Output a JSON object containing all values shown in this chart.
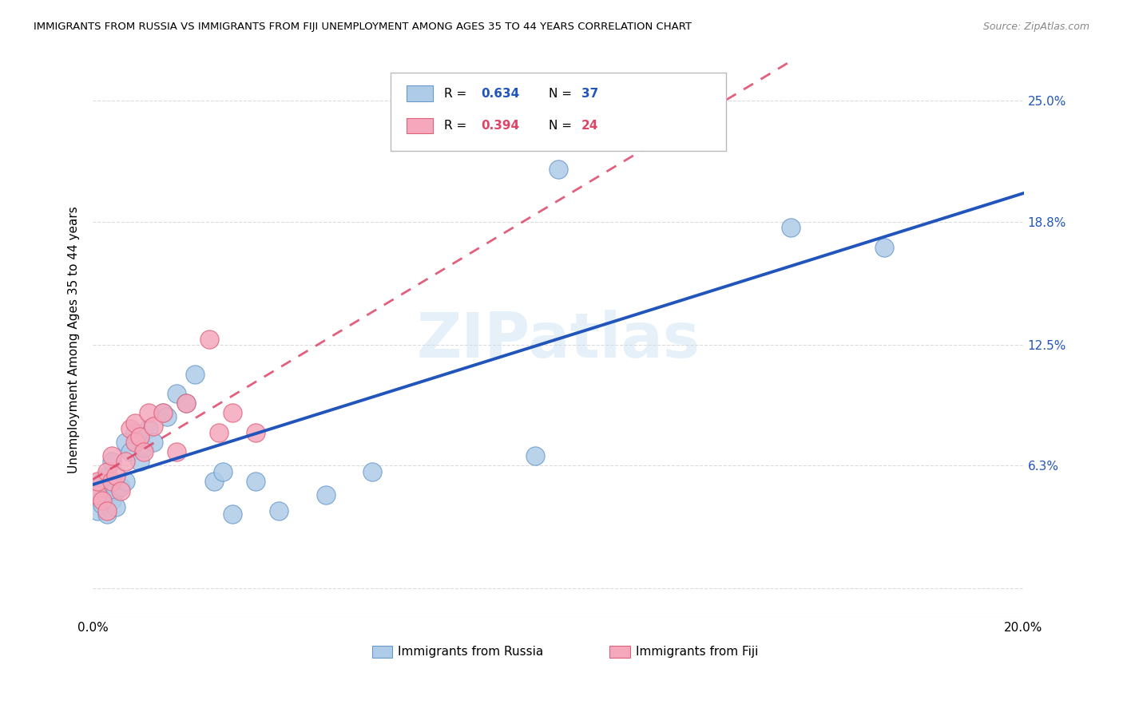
{
  "title": "IMMIGRANTS FROM RUSSIA VS IMMIGRANTS FROM FIJI UNEMPLOYMENT AMONG AGES 35 TO 44 YEARS CORRELATION CHART",
  "source": "Source: ZipAtlas.com",
  "ylabel": "Unemployment Among Ages 35 to 44 years",
  "xlim": [
    0.0,
    0.2
  ],
  "ylim": [
    -0.015,
    0.27
  ],
  "xticks": [
    0.0,
    0.025,
    0.05,
    0.075,
    0.1,
    0.125,
    0.15,
    0.175,
    0.2
  ],
  "ytick_positions": [
    0.0,
    0.063,
    0.125,
    0.188,
    0.25
  ],
  "ytick_labels_right": [
    "",
    "6.3%",
    "12.5%",
    "18.8%",
    "25.0%"
  ],
  "russia_color": "#aecce8",
  "russia_edge_color": "#6699cc",
  "fiji_color": "#f5a8bc",
  "fiji_edge_color": "#e0607a",
  "russia_line_color": "#2255bb",
  "fiji_line_color": "#dd4466",
  "watermark": "ZIPatlas",
  "grid_color": "#cccccc",
  "russia_x": [
    0.001,
    0.001,
    0.002,
    0.002,
    0.003,
    0.003,
    0.003,
    0.004,
    0.004,
    0.005,
    0.005,
    0.006,
    0.007,
    0.007,
    0.008,
    0.009,
    0.01,
    0.01,
    0.011,
    0.012,
    0.013,
    0.015,
    0.016,
    0.018,
    0.02,
    0.022,
    0.026,
    0.028,
    0.03,
    0.035,
    0.04,
    0.05,
    0.06,
    0.095,
    0.1,
    0.15,
    0.17
  ],
  "russia_y": [
    0.04,
    0.05,
    0.043,
    0.055,
    0.038,
    0.048,
    0.058,
    0.045,
    0.065,
    0.05,
    0.042,
    0.052,
    0.055,
    0.075,
    0.07,
    0.08,
    0.065,
    0.078,
    0.072,
    0.082,
    0.075,
    0.09,
    0.088,
    0.1,
    0.095,
    0.11,
    0.055,
    0.06,
    0.038,
    0.055,
    0.04,
    0.048,
    0.06,
    0.068,
    0.215,
    0.185,
    0.175
  ],
  "fiji_x": [
    0.001,
    0.001,
    0.002,
    0.003,
    0.003,
    0.004,
    0.004,
    0.005,
    0.006,
    0.007,
    0.008,
    0.009,
    0.009,
    0.01,
    0.011,
    0.012,
    0.013,
    0.015,
    0.018,
    0.02,
    0.025,
    0.027,
    0.03,
    0.035
  ],
  "fiji_y": [
    0.048,
    0.055,
    0.045,
    0.04,
    0.06,
    0.055,
    0.068,
    0.058,
    0.05,
    0.065,
    0.082,
    0.075,
    0.085,
    0.078,
    0.07,
    0.09,
    0.083,
    0.09,
    0.07,
    0.095,
    0.128,
    0.08,
    0.09,
    0.08
  ]
}
